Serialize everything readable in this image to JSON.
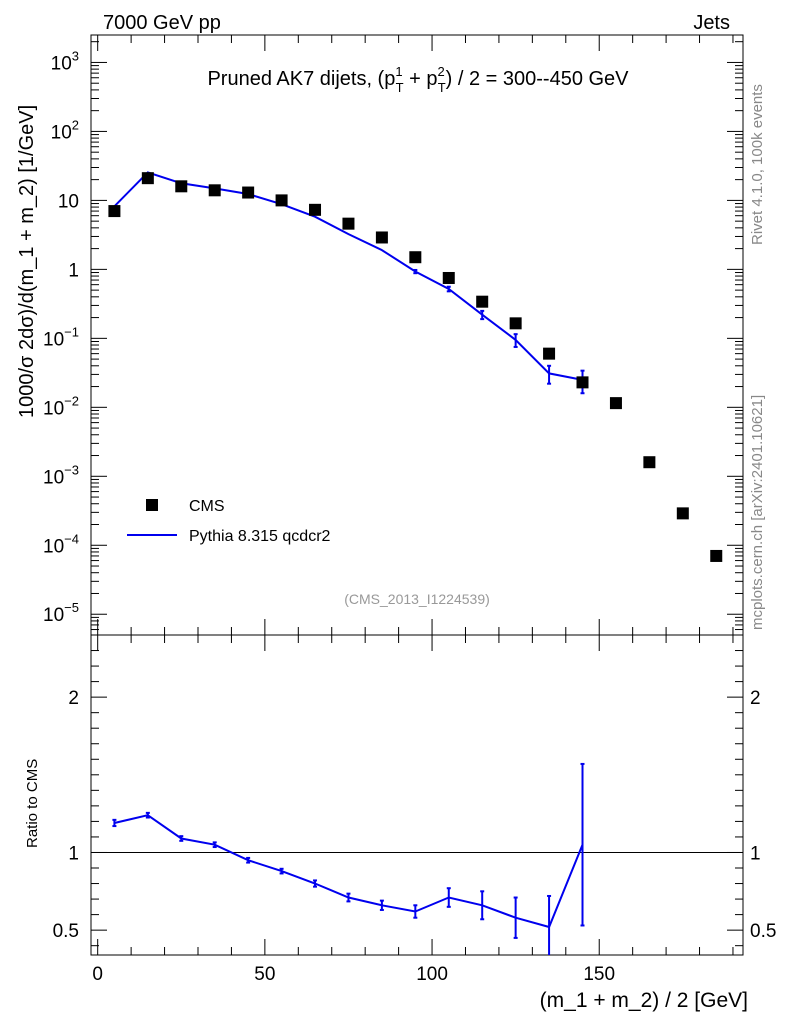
{
  "header": {
    "left": "7000 GeV pp",
    "right": "Jets"
  },
  "side_labels": {
    "rivet": "Rivet 4.1.0,  100k events",
    "mcplots": "mcplots.cern.ch [arXiv:2401.10621]"
  },
  "chart_data": {
    "type": "scatter",
    "title": "Pruned AK7 dijets, (p_T^1 + p_T^2) / 2 = 300--450 GeV",
    "title_parts": {
      "prefix": "Pruned AK7 dijets, (p",
      "sup1": "1",
      "sub": "T",
      "plus": " + p",
      "sup2": "2",
      "suffix": ") / 2 = 300--450 GeV"
    },
    "analysis_label": "(CMS_2013_I1224539)",
    "xlabel": "(m_1 + m_2) / 2 [GeV]",
    "xlim": [
      -2,
      193
    ],
    "x_ticks": [
      "0",
      "50",
      "100",
      "150"
    ],
    "x_tick_values": [
      0,
      50,
      100,
      150
    ],
    "main": {
      "ylabel": "1000/σ  2dσ)/d(m_1 + m_2) [1/GeV]",
      "yscale": "log",
      "ylim": [
        5e-06,
        2500
      ],
      "y_ticks": [
        {
          "value": 1e-05,
          "base": "10",
          "exp": "−5"
        },
        {
          "value": 0.0001,
          "base": "10",
          "exp": "−4"
        },
        {
          "value": 0.001,
          "base": "10",
          "exp": "−3"
        },
        {
          "value": 0.01,
          "base": "10",
          "exp": "−2"
        },
        {
          "value": 0.1,
          "base": "10",
          "exp": "−1"
        },
        {
          "value": 1,
          "base": "1",
          "exp": ""
        },
        {
          "value": 10,
          "base": "10",
          "exp": ""
        },
        {
          "value": 100,
          "base": "10",
          "exp": "2"
        },
        {
          "value": 1000,
          "base": "10",
          "exp": "3"
        }
      ]
    },
    "ratio": {
      "ylabel": "Ratio to CMS",
      "ylim": [
        0.34,
        2.4
      ],
      "y_ticks": [
        "0.5",
        "1",
        "2"
      ],
      "y_tick_values": [
        0.5,
        1,
        2
      ],
      "reference": 1
    },
    "legend": {
      "position": "lower-left",
      "entries": [
        "CMS",
        "Pythia 8.315 qcdcr2"
      ]
    },
    "series": [
      {
        "name": "CMS",
        "style": "marker",
        "x": [
          5,
          15,
          25,
          35,
          45,
          55,
          65,
          75,
          85,
          95,
          105,
          115,
          125,
          135,
          145,
          155,
          165,
          175,
          185
        ],
        "y": [
          7,
          21,
          16,
          14,
          13,
          10,
          7.3,
          4.6,
          2.9,
          1.5,
          0.75,
          0.34,
          0.165,
          0.06,
          0.023,
          0.0115,
          0.0016,
          0.00029,
          7e-05
        ]
      },
      {
        "name": "Pythia 8.315 qcdcr2",
        "style": "line",
        "color": "#0000ee",
        "x": [
          5,
          15,
          25,
          35,
          45,
          55,
          65,
          75,
          85,
          95,
          105,
          115,
          125,
          135,
          145
        ],
        "y": [
          8.2,
          25.5,
          17.7,
          14.9,
          12.4,
          8.8,
          5.8,
          3.25,
          1.9,
          0.93,
          0.52,
          0.22,
          0.095,
          0.031,
          0.025
        ],
        "err_lo": [
          0.3,
          0.6,
          0.4,
          0.3,
          0.25,
          0.2,
          0.15,
          0.1,
          0.07,
          0.05,
          0.04,
          0.03,
          0.02,
          0.009,
          0.009
        ],
        "err_hi": [
          0.3,
          0.6,
          0.4,
          0.3,
          0.25,
          0.2,
          0.15,
          0.1,
          0.07,
          0.05,
          0.04,
          0.03,
          0.02,
          0.009,
          0.009
        ],
        "ratio": [
          1.19,
          1.24,
          1.09,
          1.05,
          0.95,
          0.88,
          0.8,
          0.71,
          0.66,
          0.62,
          0.71,
          0.66,
          0.58,
          0.52,
          1.05
        ],
        "ratio_err": [
          0.02,
          0.015,
          0.015,
          0.015,
          0.015,
          0.015,
          0.02,
          0.025,
          0.03,
          0.04,
          0.06,
          0.09,
          0.13,
          0.2,
          0.52
        ]
      }
    ]
  }
}
